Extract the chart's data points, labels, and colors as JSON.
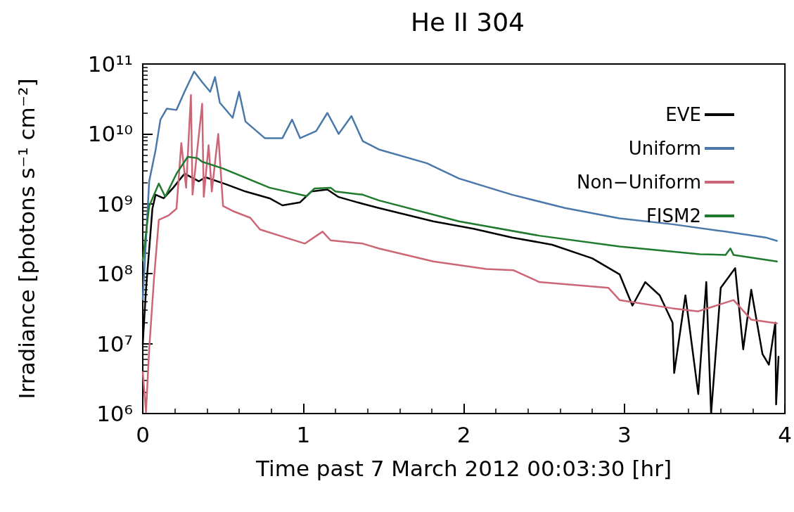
{
  "chart_data": {
    "type": "line",
    "title": "He II 304",
    "xlabel": "Time past 7 March 2012 00:03:30 [hr]",
    "ylabel": "Irradiance [photons s⁻¹ cm⁻²]",
    "log": "y",
    "grid": false,
    "legend": "top right",
    "marker": "none",
    "line_style": "solid",
    "xlim": [
      0,
      4
    ],
    "xticks": [
      0,
      1,
      2,
      3,
      4
    ],
    "ylim": [
      1000000.0,
      100000000000.0
    ],
    "yticks": [
      {
        "value": 1000000.0,
        "label": "10⁶"
      },
      {
        "value": 10000000.0,
        "label": "10⁷"
      },
      {
        "value": 100000000.0,
        "label": "10⁸"
      },
      {
        "value": 1000000000.0,
        "label": "10⁹"
      },
      {
        "value": 10000000000.0,
        "label": "10¹⁰"
      },
      {
        "value": 100000000000.0,
        "label": "10¹¹"
      }
    ],
    "series": [
      {
        "name": "EVE",
        "color": "#000000",
        "x": [
          0,
          0.02,
          0.06,
          0.08,
          0.13,
          0.19,
          0.26,
          0.35,
          0.39,
          0.52,
          0.64,
          0.79,
          0.87,
          0.98,
          1.05,
          1.15,
          1.22,
          1.37,
          1.47,
          1.81,
          2.06,
          2.3,
          2.55,
          2.8,
          2.97,
          3.05,
          3.13,
          3.22,
          3.3,
          3.31,
          3.38,
          3.46,
          3.51,
          3.54,
          3.6,
          3.69,
          3.74,
          3.79,
          3.86,
          3.9,
          3.94,
          3.945,
          3.96
        ],
        "values": [
          9800000.0,
          59000000.0,
          850000000.0,
          1350000000.0,
          1200000000.0,
          1700000000.0,
          2700000000.0,
          2100000000.0,
          2400000000.0,
          1900000000.0,
          1500000000.0,
          1200000000.0,
          950000000.0,
          1050000000.0,
          1500000000.0,
          1600000000.0,
          1250000000.0,
          1000000000.0,
          870000000.0,
          560000000.0,
          440000000.0,
          330000000.0,
          260000000.0,
          166000000.0,
          98000000.0,
          35000000.0,
          76000000.0,
          49000000.0,
          20000000.0,
          3800000.0,
          49000000.0,
          1900000.0,
          76000000.0,
          1000000.0,
          63000000.0,
          120000000.0,
          8300000.0,
          59000000.0,
          7100000.0,
          5000000.0,
          20000000.0,
          1350000.0,
          6500000.0
        ]
      },
      {
        "name": "Uniform",
        "color": "#4a78aa",
        "x": [
          0,
          0.04,
          0.08,
          0.11,
          0.15,
          0.21,
          0.26,
          0.32,
          0.37,
          0.42,
          0.45,
          0.48,
          0.56,
          0.6,
          0.64,
          0.76,
          0.87,
          0.93,
          0.98,
          1.08,
          1.15,
          1.22,
          1.3,
          1.37,
          1.47,
          1.77,
          1.97,
          2.3,
          2.63,
          2.97,
          3.3,
          3.63,
          3.88,
          3.95
        ],
        "values": [
          43000000.0,
          2100000000.0,
          5900000000.0,
          16000000000.0,
          23000000000.0,
          22000000000.0,
          40000000000.0,
          78000000000.0,
          55000000000.0,
          40000000000.0,
          65000000000.0,
          28000000000.0,
          17000000000.0,
          40000000000.0,
          15000000000.0,
          8700000000.0,
          8700000000.0,
          16000000000.0,
          8700000000.0,
          11000000000.0,
          20000000000.0,
          10000000000.0,
          18000000000.0,
          7900000000.0,
          6000000000.0,
          3800000000.0,
          2300000000.0,
          1350000000.0,
          870000000.0,
          620000000.0,
          510000000.0,
          400000000.0,
          330000000.0,
          295000000.0
        ]
      },
      {
        "name": "Non−Uniform",
        "color": "#cc6677",
        "x": [
          0,
          0.02,
          0.04,
          0.07,
          0.1,
          0.16,
          0.21,
          0.24,
          0.27,
          0.3,
          0.31,
          0.37,
          0.38,
          0.41,
          0.43,
          0.47,
          0.5,
          0.56,
          0.67,
          0.73,
          0.87,
          1.01,
          1.12,
          1.17,
          1.37,
          1.47,
          1.81,
          2.14,
          2.31,
          2.47,
          2.9,
          2.97,
          3.3,
          3.46,
          3.68,
          3.79,
          3.95
        ],
        "values": [
          3900000.0,
          1050000.0,
          8300000.0,
          85000000.0,
          590000000.0,
          680000000.0,
          850000000.0,
          7400000000.0,
          1700000000.0,
          36000000000.0,
          1350000000.0,
          27000000000.0,
          1260000000.0,
          6900000000.0,
          1500000000.0,
          10000000000.0,
          930000000.0,
          790000000.0,
          630000000.0,
          430000000.0,
          340000000.0,
          270000000.0,
          400000000.0,
          300000000.0,
          270000000.0,
          230000000.0,
          150000000.0,
          117000000.0,
          112000000.0,
          76000000.0,
          63000000.0,
          42000000.0,
          32000000.0,
          29000000.0,
          42000000.0,
          22000000.0,
          19500000.0
        ]
      },
      {
        "name": "FISM2",
        "color": "#1f7a2e",
        "x": [
          0,
          0.04,
          0.1,
          0.14,
          0.21,
          0.28,
          0.34,
          0.37,
          0.5,
          0.79,
          1.02,
          1.07,
          1.17,
          1.2,
          1.37,
          1.47,
          1.97,
          2.47,
          2.97,
          3.47,
          3.63,
          3.66,
          3.68,
          3.95
        ],
        "values": [
          155000000.0,
          930000000.0,
          1950000000.0,
          1260000000.0,
          2700000000.0,
          4700000000.0,
          4500000000.0,
          4000000000.0,
          3200000000.0,
          1700000000.0,
          1290000000.0,
          1660000000.0,
          1700000000.0,
          1500000000.0,
          1350000000.0,
          1120000000.0,
          560000000.0,
          350000000.0,
          245000000.0,
          190000000.0,
          186000000.0,
          230000000.0,
          186000000.0,
          150000000.0
        ]
      }
    ]
  }
}
